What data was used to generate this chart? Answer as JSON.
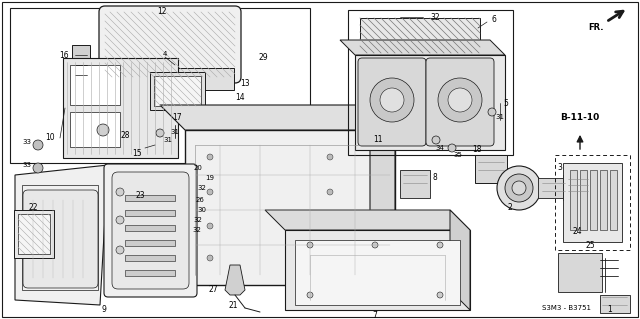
{
  "bg_color": "#ffffff",
  "line_color": "#1a1a1a",
  "gray_fill": "#d8d8d8",
  "light_gray": "#eeeeee",
  "dark_gray": "#888888",
  "diagram_ref": "S3M3-B3751",
  "section_ref": "B-11-10",
  "text_color": "#000000",
  "figsize": [
    6.4,
    3.19
  ],
  "dpi": 100
}
